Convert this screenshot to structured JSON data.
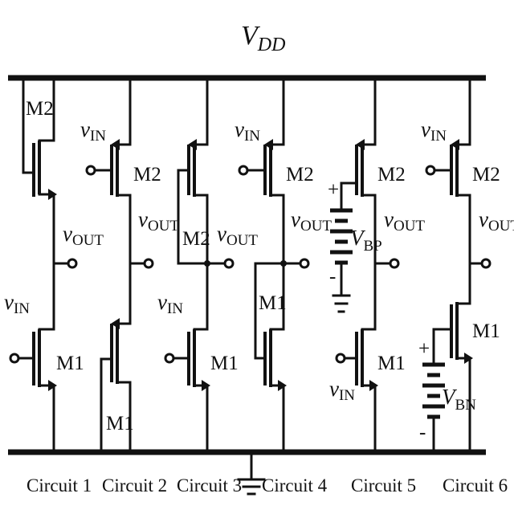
{
  "supply": {
    "symbol": "V",
    "subscript": "DD"
  },
  "signals": {
    "vin": {
      "symbol": "v",
      "subscript": "IN"
    },
    "vout": {
      "symbol": "v",
      "subscript": "OUT"
    },
    "vbp": {
      "symbol": "V",
      "subscript": "BP"
    },
    "vbn": {
      "symbol": "V",
      "subscript": "BN"
    }
  },
  "transistors": {
    "m1": "M1",
    "m2": "M2"
  },
  "battery_plus": "+",
  "battery_minus": "-",
  "circuits": [
    {
      "label": "Circuit 1"
    },
    {
      "label": "Circuit 2"
    },
    {
      "label": "Circuit 3"
    },
    {
      "label": "Circuit 4"
    },
    {
      "label": "Circuit 5"
    },
    {
      "label": "Circuit 6"
    }
  ]
}
